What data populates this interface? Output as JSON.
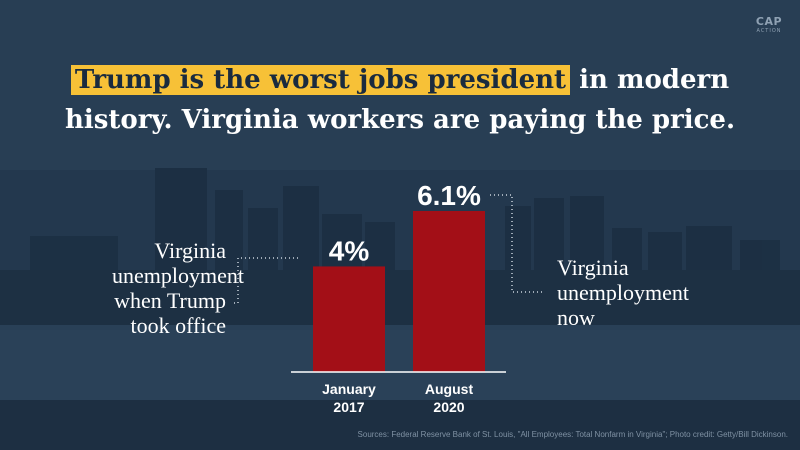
{
  "headline": {
    "highlight": "Trump is the worst jobs president",
    "rest_line1": " in modern",
    "line2": "history. Virginia workers are paying the price."
  },
  "logo": {
    "main": "CAP",
    "sub": "ACTION"
  },
  "labels": {
    "left": [
      "Virginia",
      "unemployment",
      "when Trump",
      "took office"
    ],
    "right": [
      "Virginia",
      "unemployment",
      "now"
    ]
  },
  "footer": "Sources: Federal Reserve Bank of St. Louis, \"All Employees: Total Nonfarm in Virginia\"; Photo credit: Getty/Bill Dickinson.",
  "colors": {
    "bar": "#a30f17",
    "highlight": "#f7c137",
    "text": "#ffffff"
  },
  "chart_data": {
    "type": "bar",
    "categories": [
      [
        "January",
        "2017"
      ],
      [
        "August",
        "2020"
      ]
    ],
    "values": [
      4,
      6.1
    ],
    "value_labels": [
      "4%",
      "6.1%"
    ],
    "title": "",
    "xlabel": "",
    "ylabel": "",
    "ylim": [
      0,
      6.1
    ],
    "grid": false
  }
}
